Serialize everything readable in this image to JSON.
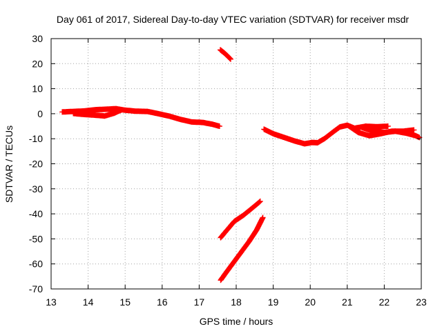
{
  "chart_data": {
    "type": "scatter",
    "title": "Day 061 of 2017, Sidereal Day-to-day VTEC variation (SDTVAR) for receiver msdr",
    "xlabel": "GPS time / hours",
    "ylabel": "SDTVAR / TECUs",
    "xlim": [
      13,
      23
    ],
    "ylim": [
      -70,
      30
    ],
    "xticks": [
      13,
      14,
      15,
      16,
      17,
      18,
      19,
      20,
      21,
      22,
      23
    ],
    "yticks": [
      30,
      20,
      10,
      0,
      -10,
      -20,
      -30,
      -40,
      -50,
      -60,
      -70
    ],
    "grid": true,
    "color": "#ff0000",
    "series": [
      {
        "values": [
          [
            13.3,
            0.7
          ],
          [
            13.6,
            0.9
          ],
          [
            13.9,
            1.1
          ],
          [
            14.2,
            1.6
          ],
          [
            14.5,
            1.8
          ],
          [
            14.75,
            2.0
          ],
          [
            15.0,
            1.4
          ],
          [
            15.3,
            1.0
          ],
          [
            15.6,
            0.9
          ],
          [
            15.9,
            0.0
          ],
          [
            16.2,
            -1.0
          ],
          [
            16.5,
            -2.3
          ],
          [
            16.8,
            -3.3
          ],
          [
            17.1,
            -3.5
          ],
          [
            17.35,
            -4.2
          ],
          [
            17.55,
            -5.0
          ]
        ]
      },
      {
        "values": [
          [
            13.6,
            0.1
          ],
          [
            13.9,
            -0.3
          ],
          [
            14.2,
            -0.6
          ],
          [
            14.45,
            -0.9
          ],
          [
            14.7,
            0.2
          ],
          [
            14.9,
            1.5
          ]
        ]
      },
      {
        "values": [
          [
            17.57,
            25.5
          ],
          [
            17.66,
            24.5
          ],
          [
            17.75,
            23.3
          ],
          [
            17.85,
            21.8
          ]
        ]
      },
      {
        "values": [
          [
            17.58,
            -49.5
          ],
          [
            17.75,
            -46.5
          ],
          [
            17.95,
            -43.0
          ],
          [
            18.2,
            -40.5
          ],
          [
            18.45,
            -37.5
          ],
          [
            18.65,
            -35.0
          ]
        ]
      },
      {
        "values": [
          [
            17.58,
            -66.5
          ],
          [
            17.75,
            -63.0
          ],
          [
            17.95,
            -59.0
          ],
          [
            18.15,
            -55.0
          ],
          [
            18.35,
            -51.0
          ],
          [
            18.55,
            -46.5
          ],
          [
            18.72,
            -41.5
          ]
        ]
      },
      {
        "values": [
          [
            18.75,
            -6.2
          ],
          [
            19.0,
            -8.0
          ],
          [
            19.3,
            -9.5
          ],
          [
            19.6,
            -11.0
          ],
          [
            19.85,
            -12.0
          ],
          [
            20.05,
            -11.5
          ],
          [
            20.2,
            -11.6
          ],
          [
            20.4,
            -9.8
          ],
          [
            20.6,
            -7.5
          ],
          [
            20.8,
            -5.3
          ],
          [
            21.0,
            -4.6
          ],
          [
            21.2,
            -5.8
          ],
          [
            21.5,
            -5.0
          ],
          [
            21.8,
            -5.2
          ],
          [
            22.1,
            -5.0
          ]
        ]
      },
      {
        "values": [
          [
            21.05,
            -5.0
          ],
          [
            21.3,
            -7.5
          ],
          [
            21.6,
            -8.8
          ],
          [
            21.9,
            -8.0
          ],
          [
            22.2,
            -7.0
          ],
          [
            22.5,
            -7.0
          ],
          [
            22.8,
            -6.5
          ]
        ]
      },
      {
        "values": [
          [
            21.4,
            -5.5
          ],
          [
            21.7,
            -7.0
          ],
          [
            22.0,
            -7.5
          ],
          [
            22.3,
            -7.0
          ],
          [
            22.6,
            -7.8
          ],
          [
            22.85,
            -8.8
          ],
          [
            22.95,
            -9.5
          ]
        ]
      }
    ]
  }
}
